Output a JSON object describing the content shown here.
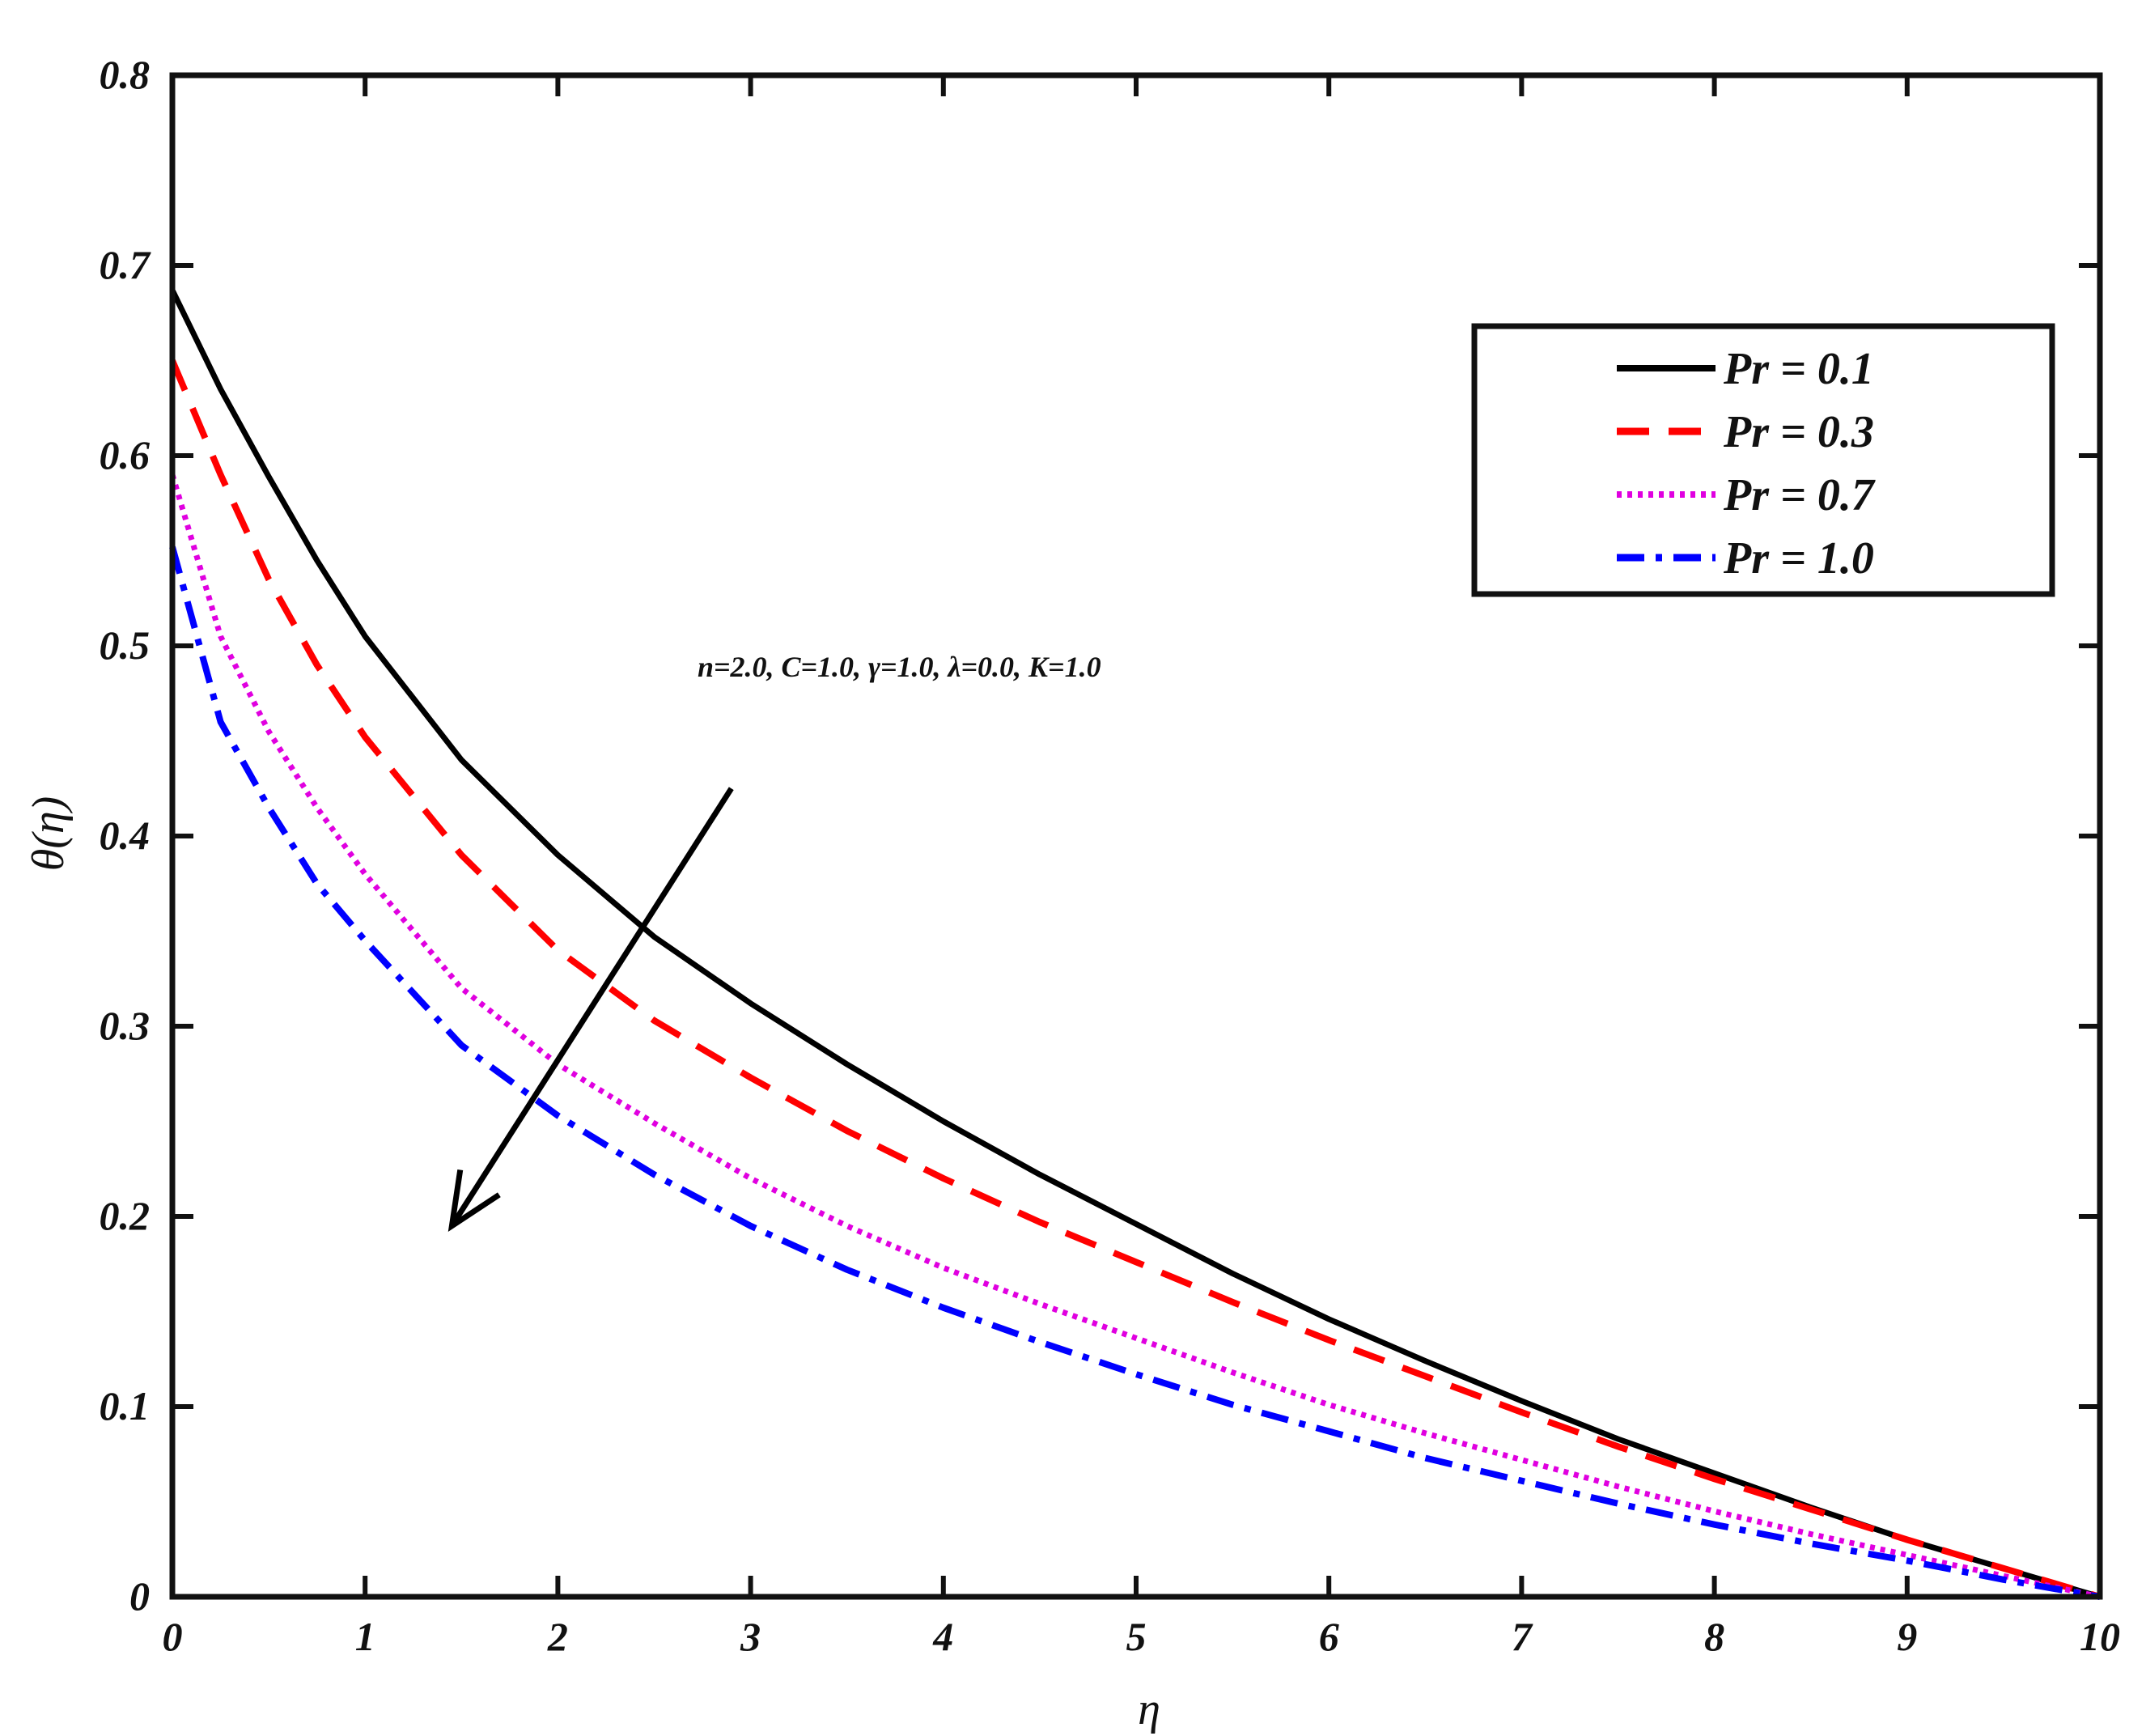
{
  "chart_data": {
    "type": "line",
    "title": "",
    "xlabel": "η",
    "ylabel": "θ(η)",
    "xlim": [
      0,
      10
    ],
    "ylim": [
      0,
      0.8
    ],
    "xticks": [
      "0",
      "1",
      "2",
      "3",
      "4",
      "5",
      "6",
      "7",
      "8",
      "9",
      "10"
    ],
    "yticks": [
      "0",
      "0.1",
      "0.2",
      "0.3",
      "0.4",
      "0.5",
      "0.6",
      "0.7",
      "0.8"
    ],
    "grid": false,
    "legend_position": "upper-right",
    "x": [
      0,
      0.25,
      0.5,
      0.75,
      1,
      1.5,
      2,
      2.5,
      3,
      3.5,
      4,
      4.5,
      5,
      5.5,
      6,
      6.5,
      7,
      7.5,
      8,
      8.5,
      9,
      9.5,
      10
    ],
    "series": [
      {
        "name": "Pr = 0.1",
        "color": "#000000",
        "style": "solid",
        "values": [
          0.687,
          0.635,
          0.589,
          0.545,
          0.505,
          0.44,
          0.39,
          0.347,
          0.312,
          0.28,
          0.25,
          0.222,
          0.196,
          0.17,
          0.146,
          0.124,
          0.103,
          0.083,
          0.065,
          0.047,
          0.03,
          0.015,
          0.0
        ]
      },
      {
        "name": "Pr = 0.3",
        "color": "#ff0000",
        "style": "dashed",
        "values": [
          0.65,
          0.59,
          0.535,
          0.49,
          0.452,
          0.39,
          0.34,
          0.303,
          0.273,
          0.245,
          0.22,
          0.197,
          0.176,
          0.155,
          0.135,
          0.116,
          0.097,
          0.079,
          0.062,
          0.046,
          0.03,
          0.015,
          0.0
        ]
      },
      {
        "name": "Pr = 0.7",
        "color": "#e000e0",
        "style": "dotted",
        "values": [
          0.59,
          0.505,
          0.455,
          0.415,
          0.38,
          0.32,
          0.28,
          0.249,
          0.22,
          0.195,
          0.173,
          0.154,
          0.136,
          0.118,
          0.101,
          0.086,
          0.072,
          0.058,
          0.045,
          0.033,
          0.022,
          0.011,
          0.0
        ]
      },
      {
        "name": "Pr = 1.0",
        "color": "#0000ff",
        "style": "dashdot",
        "values": [
          0.552,
          0.46,
          0.415,
          0.375,
          0.345,
          0.29,
          0.253,
          0.222,
          0.195,
          0.172,
          0.152,
          0.134,
          0.117,
          0.101,
          0.087,
          0.073,
          0.061,
          0.049,
          0.038,
          0.028,
          0.019,
          0.009,
          0.0
        ]
      }
    ],
    "annotation": "n=2.0, C=1.0,  γ=1.0,  λ=0.0, K=1.0",
    "arrow": {
      "from": [
        2.9,
        0.425
      ],
      "to": [
        1.45,
        0.195
      ]
    }
  }
}
